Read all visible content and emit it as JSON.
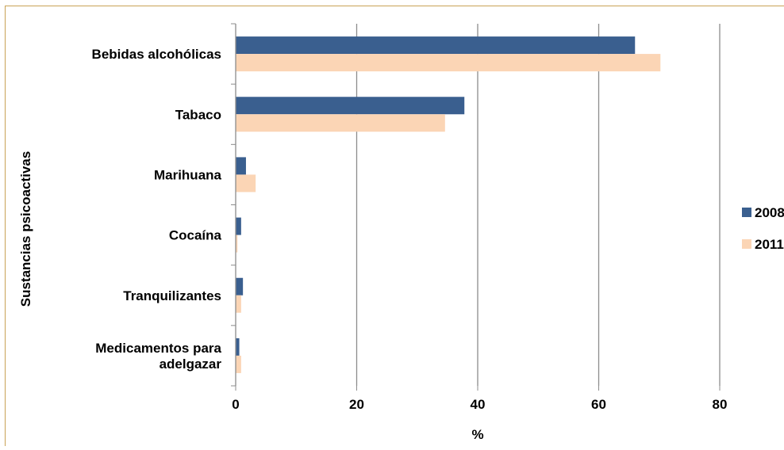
{
  "chart_data": {
    "type": "bar",
    "orientation": "horizontal",
    "title": "",
    "xlabel": "%",
    "ylabel": "Sustancias psicoactivas",
    "xlim": [
      0,
      80
    ],
    "xticks": [
      "0",
      "20",
      "40",
      "60",
      "80"
    ],
    "grid": true,
    "legend_position": "right",
    "categories": [
      [
        "Bebidas alcohólicas"
      ],
      [
        "Tabaco"
      ],
      [
        "Marihuana"
      ],
      [
        "Cocaína"
      ],
      [
        "Tranquilizantes"
      ],
      [
        "Medicamentos para",
        "adelgazar"
      ]
    ],
    "series": [
      {
        "name": "2008",
        "color": "#3a5f8f",
        "values": [
          66.0,
          37.8,
          1.7,
          0.9,
          1.2,
          0.6
        ]
      },
      {
        "name": "2011",
        "color": "#fbd5b5",
        "values": [
          70.2,
          34.6,
          3.3,
          0.3,
          0.9,
          0.9
        ]
      }
    ]
  },
  "frame": {
    "border_color": "#c9a255"
  }
}
